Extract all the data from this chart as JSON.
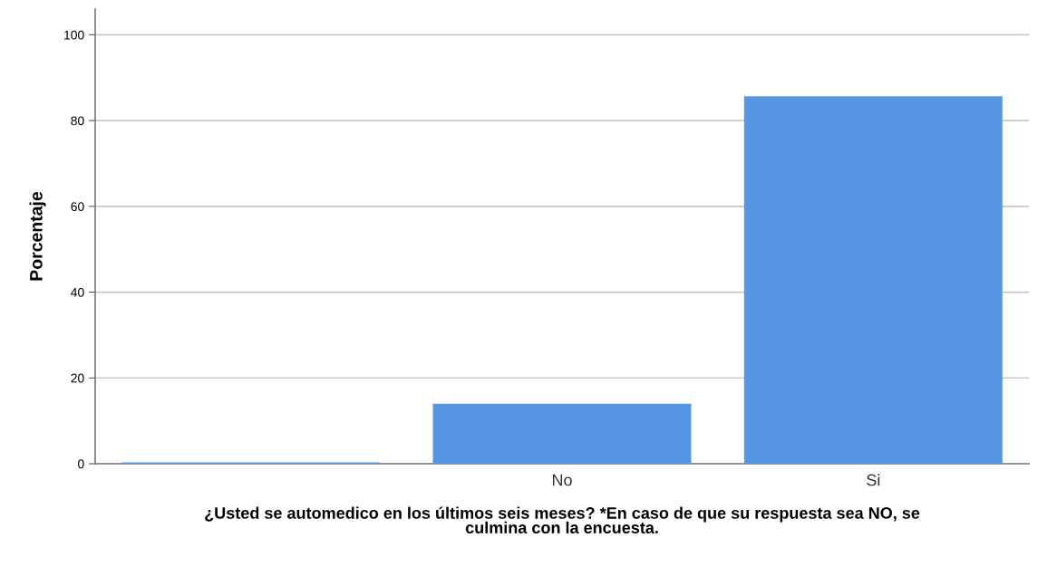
{
  "chart_data": {
    "type": "bar",
    "categories": [
      null,
      "No",
      "Si"
    ],
    "values": [
      0.3,
      14.0,
      85.7
    ],
    "color": "#5597e3",
    "xlabel": "¿Usted se automedico en los últimos seis meses? *En caso de que su respuesta sea NO, se\nculmina con la encuesta.",
    "ylabel": "Porcentaje",
    "ylim": [
      0,
      106
    ],
    "yticks": [
      0,
      20,
      40,
      60,
      80,
      100
    ],
    "grid": "y",
    "legend": false
  }
}
